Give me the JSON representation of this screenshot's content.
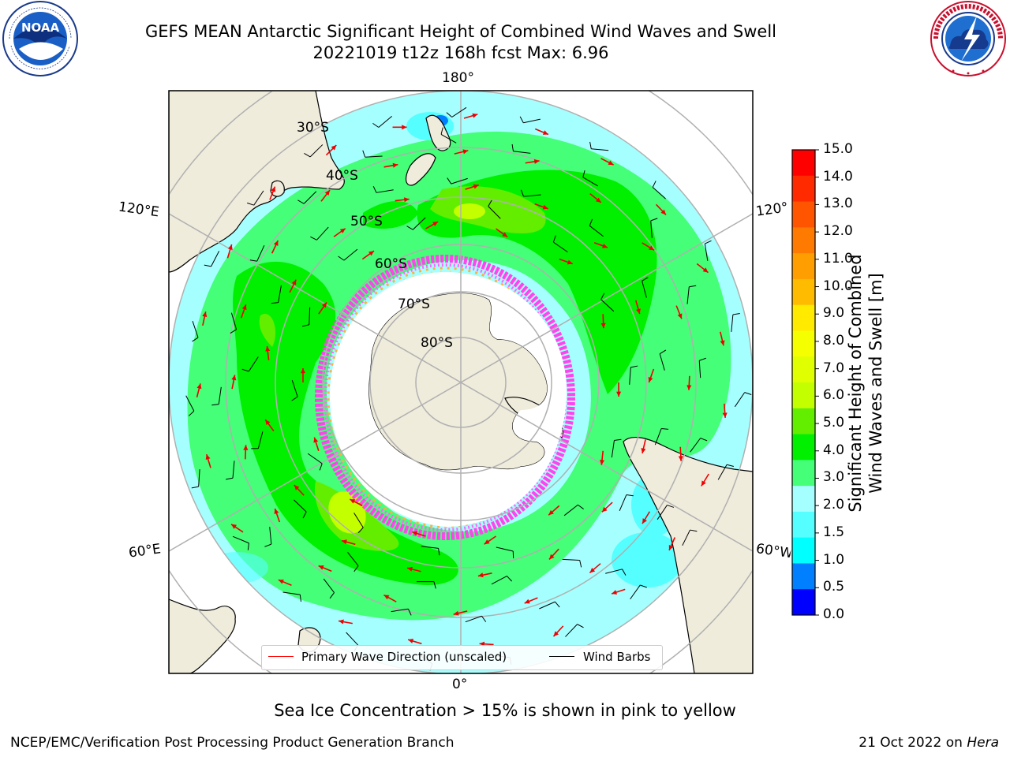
{
  "header": {
    "title_line1": "GEFS MEAN Antarctic Significant Height of Combined Wind Waves and Swell",
    "title_line2": "20221019 t12z 168h fcst   Max: 6.96"
  },
  "logos": {
    "left": {
      "icon": "noaa-logo-icon",
      "text": "NOAA",
      "ring_text": "NATIONAL OCEANIC AND ATMOSPHERIC ADMINISTRATION · U.S. DEPARTMENT OF COMMERCE"
    },
    "right": {
      "icon": "national-weather-service-logo-icon",
      "ring_text": "NATIONAL WEATHER SERVICE"
    }
  },
  "map": {
    "projection": "south-polar-stereographic",
    "latitude_labels": [
      "30°S",
      "40°S",
      "50°S",
      "60°S",
      "70°S",
      "80°S"
    ],
    "longitude_labels": {
      "top": "180°",
      "bottom": "0°",
      "upper_left": "120°E",
      "lower_left": "60°E",
      "upper_right": "120°",
      "lower_right": "60°W"
    },
    "legend": {
      "primary_wave_direction": {
        "label": "Primary Wave Direction (unscaled)",
        "color": "#ff0000"
      },
      "wind_barbs": {
        "label": "Wind Barbs",
        "color": "#000000"
      }
    },
    "colors": {
      "land": "#efecdc",
      "ocean_low": "#a6ffff",
      "grid": "#b0b0b0",
      "ice_pink": "#ff44ee",
      "ice_orange": "#ffb040"
    }
  },
  "colorbar": {
    "title": "Significant Height of Combined Wind Waves and Swell [m]",
    "ticks": [
      "15.0",
      "14.0",
      "13.0",
      "12.0",
      "11.0",
      "10.0",
      "9.0",
      "8.0",
      "7.0",
      "6.0",
      "5.0",
      "4.0",
      "3.0",
      "2.0",
      "1.5",
      "1.0",
      "0.5",
      "0.0"
    ],
    "colors_top_to_bottom": [
      "#ff0000",
      "#ff2a00",
      "#ff5500",
      "#ff7a00",
      "#ff9e00",
      "#ffbb00",
      "#ffea00",
      "#f5ff00",
      "#e0ff00",
      "#c4ff00",
      "#63ee00",
      "#00f000",
      "#44ff77",
      "#a6ffff",
      "#55ffff",
      "#00ffff",
      "#0080ff",
      "#0000ff"
    ]
  },
  "subtitle": "Sea Ice Concentration > 15% is shown in pink to yellow",
  "footer": {
    "left": "NCEP/EMC/Verification Post Processing Product Generation Branch",
    "right_date": "21 Oct 2022 on",
    "right_host": "Hera"
  }
}
